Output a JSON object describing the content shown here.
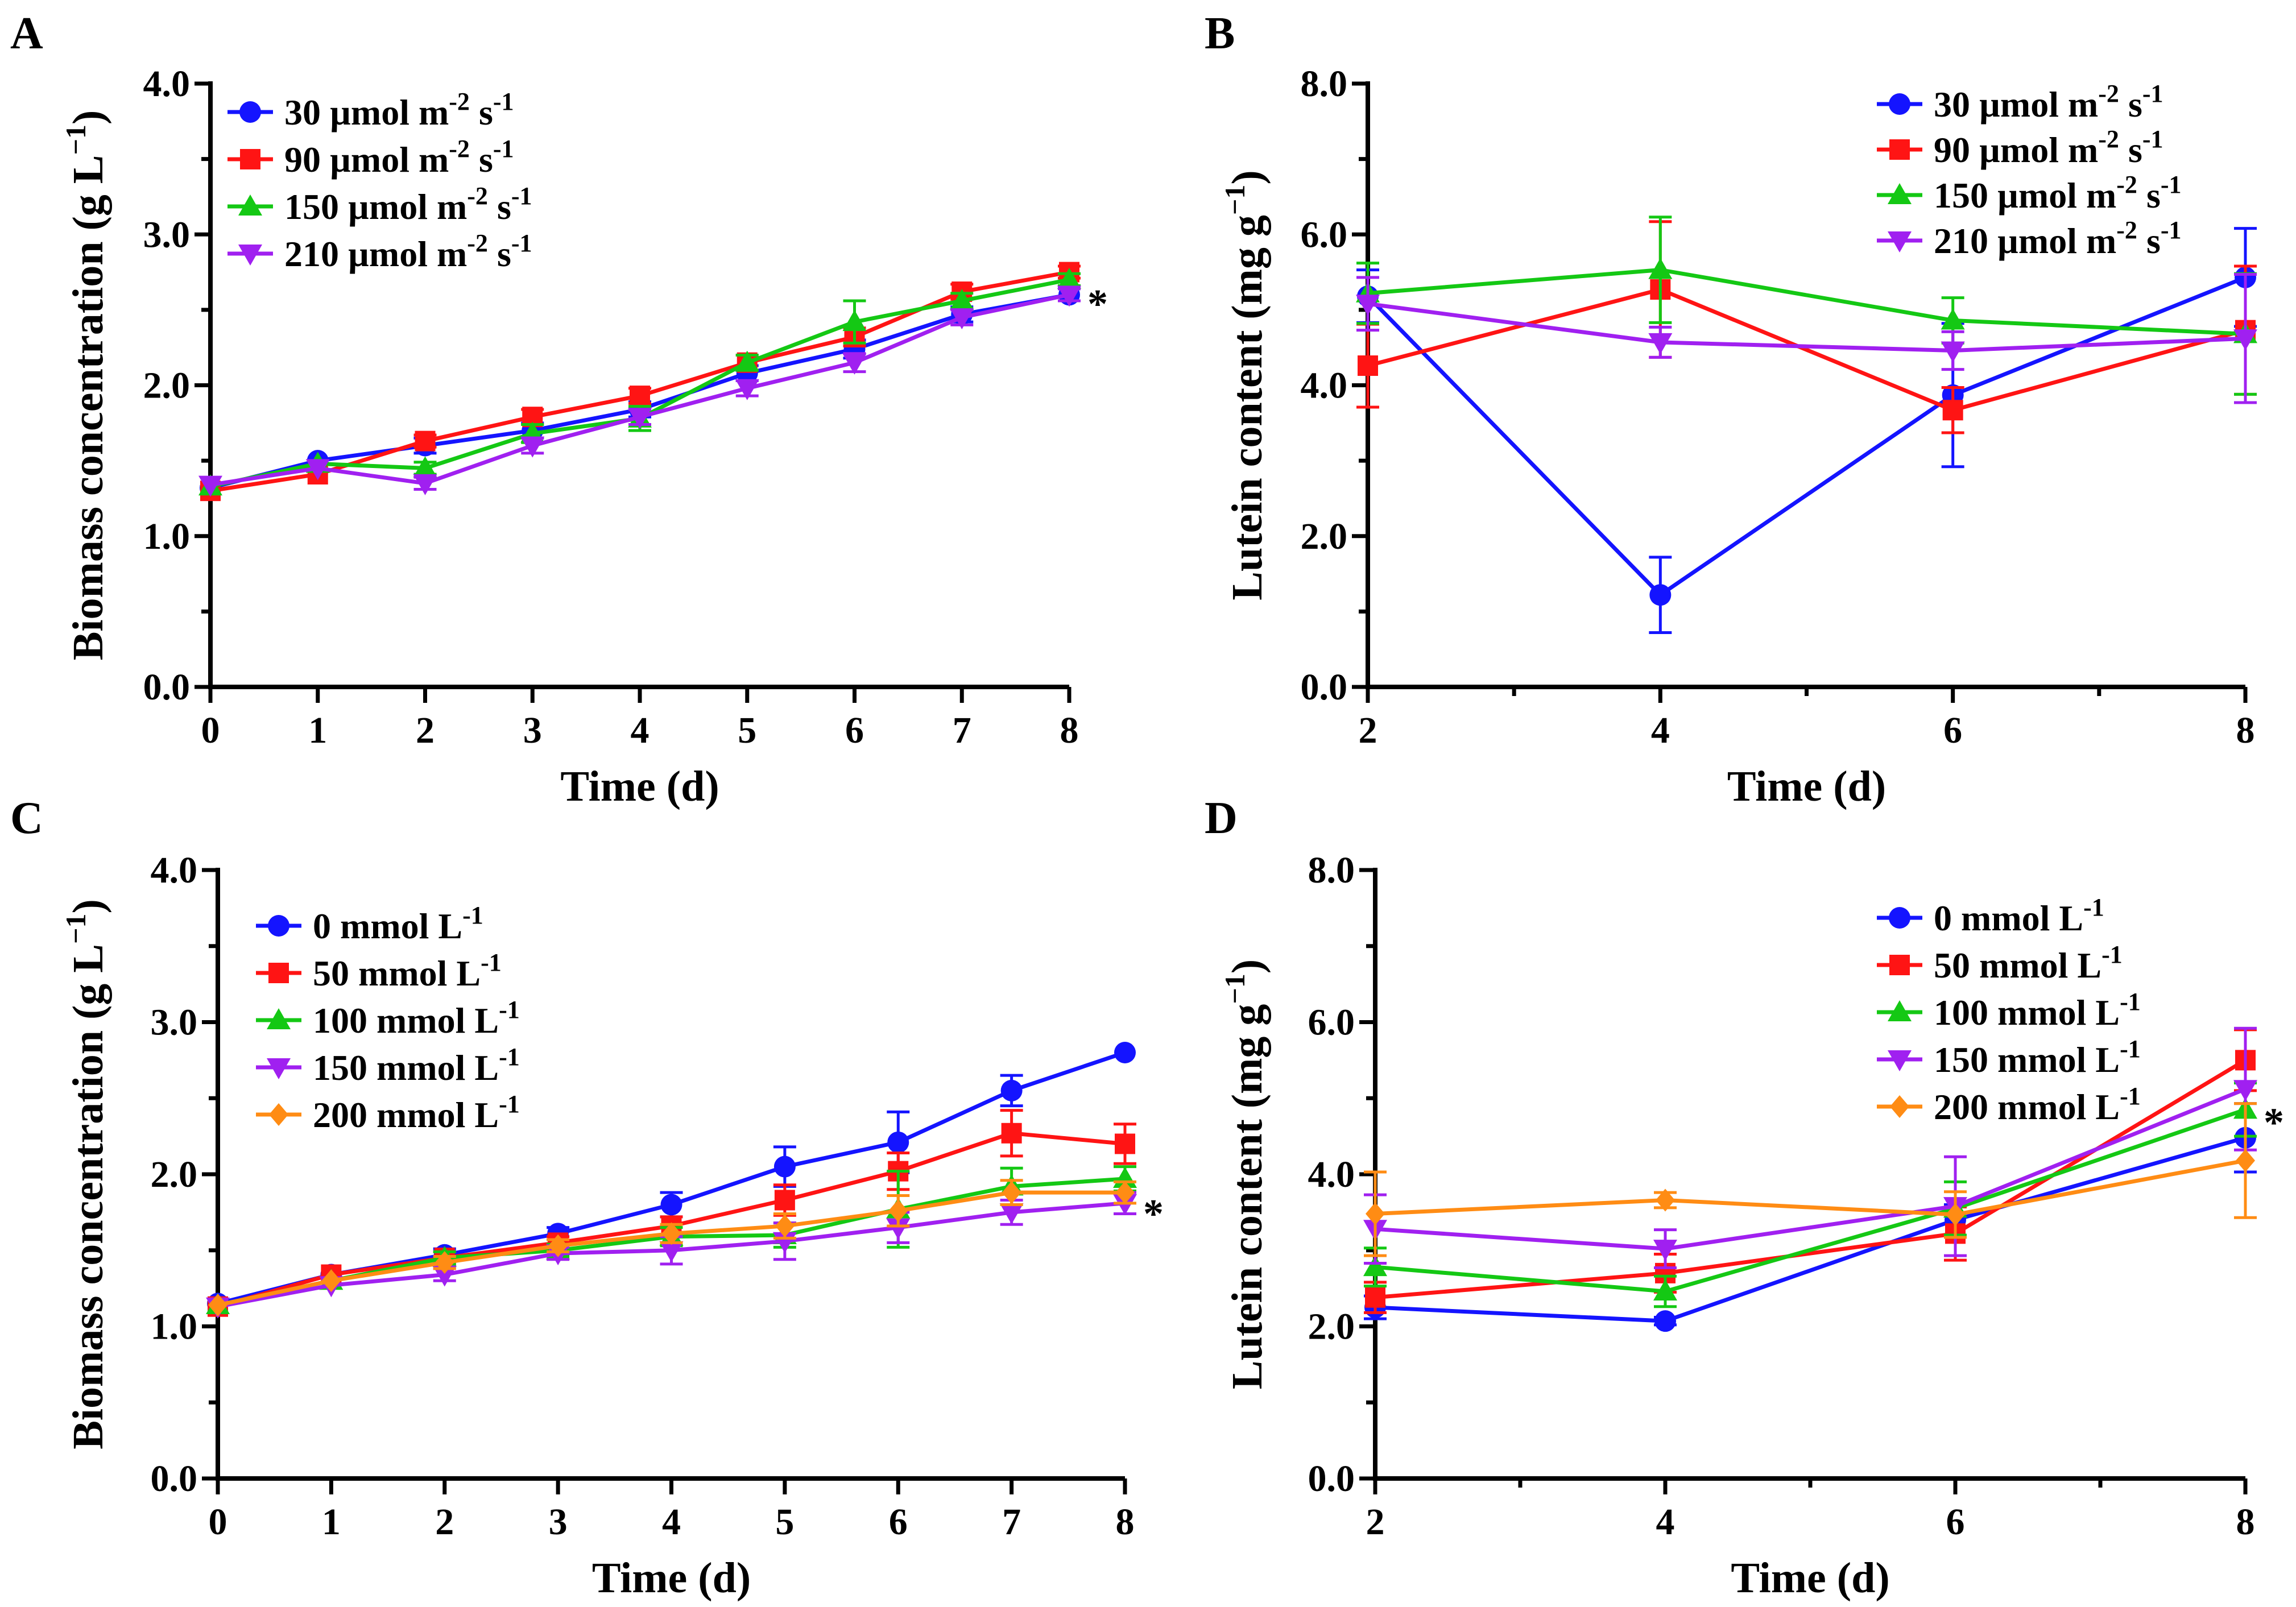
{
  "chart_data": [
    {
      "panel": "A",
      "type": "line",
      "title": "",
      "xlabel": "Time (d)",
      "ylabel": "Biomass concentration (g L",
      "ylabel_sup": "−1",
      "ylabel_close": ")",
      "xlim": [
        0,
        8
      ],
      "ylim": [
        0,
        4
      ],
      "xticks": [
        "0",
        "1",
        "2",
        "3",
        "4",
        "5",
        "6",
        "7",
        "8"
      ],
      "xtick_values": [
        0,
        1,
        2,
        3,
        4,
        5,
        6,
        7,
        8
      ],
      "yticks": [
        "0.0",
        "1.0",
        "2.0",
        "3.0",
        "4.0"
      ],
      "ytick_values": [
        0,
        1,
        2,
        3,
        4
      ],
      "legend_position": "top-left",
      "significance": "*",
      "significance_at": [
        8,
        2.6
      ],
      "x": [
        0,
        1,
        2,
        3,
        4,
        5,
        6,
        7,
        8
      ],
      "series": [
        {
          "name": "30 µmol m",
          "sup1": "-2",
          "mid": " s",
          "sup2": "-1",
          "color": "#1414FF",
          "marker": "circle",
          "values": [
            1.32,
            1.5,
            1.6,
            1.7,
            1.84,
            2.08,
            2.24,
            2.47,
            2.6
          ],
          "errors": [
            0.03,
            0.03,
            0.05,
            0.05,
            0.05,
            0.05,
            0.06,
            0.05,
            0.04
          ]
        },
        {
          "name": "90 µmol m",
          "sup1": "-2",
          "mid": " s",
          "sup2": "-1",
          "color": "#FF1414",
          "marker": "square",
          "values": [
            1.3,
            1.41,
            1.63,
            1.79,
            1.93,
            2.15,
            2.32,
            2.62,
            2.75
          ],
          "errors": [
            0.03,
            0.03,
            0.04,
            0.05,
            0.05,
            0.05,
            0.06,
            0.05,
            0.04
          ]
        },
        {
          "name": "150 µmol m",
          "sup1": "-2",
          "mid": " s",
          "sup2": "-1",
          "color": "#14C814",
          "marker": "triangle-up",
          "values": [
            1.33,
            1.48,
            1.45,
            1.68,
            1.78,
            2.15,
            2.42,
            2.56,
            2.7
          ],
          "errors": [
            0.03,
            0.03,
            0.04,
            0.06,
            0.08,
            0.05,
            0.14,
            0.05,
            0.04
          ]
        },
        {
          "name": "210 µmol m",
          "sup1": "-2",
          "mid": " s",
          "sup2": "-1",
          "color": "#A020F0",
          "marker": "triangle-down",
          "values": [
            1.34,
            1.45,
            1.35,
            1.6,
            1.79,
            1.98,
            2.15,
            2.45,
            2.6
          ],
          "errors": [
            0.03,
            0.03,
            0.04,
            0.05,
            0.05,
            0.05,
            0.06,
            0.05,
            0.04
          ]
        }
      ]
    },
    {
      "panel": "B",
      "type": "line",
      "title": "",
      "xlabel": "Time (d)",
      "ylabel": "Lutein content (mg g",
      "ylabel_sup": "−1",
      "ylabel_close": ")",
      "xlim": [
        2,
        8
      ],
      "ylim": [
        0,
        8
      ],
      "xticks": [
        "2",
        "4",
        "6",
        "8"
      ],
      "xtick_values": [
        2,
        4,
        6,
        8
      ],
      "yticks": [
        "0.0",
        "2.0",
        "4.0",
        "6.0",
        "8.0"
      ],
      "ytick_values": [
        0,
        2,
        4,
        6,
        8
      ],
      "legend_position": "top-right",
      "significance": "",
      "significance_at": null,
      "x": [
        2,
        4,
        6,
        8
      ],
      "series": [
        {
          "name": "30 µmol m",
          "sup1": "-2",
          "mid": " s",
          "sup2": "-1",
          "color": "#1414FF",
          "marker": "circle",
          "values": [
            5.18,
            1.22,
            3.87,
            5.43
          ],
          "errors": [
            0.35,
            0.5,
            0.95,
            0.65
          ]
        },
        {
          "name": "90 µmol m",
          "sup1": "-2",
          "mid": " s",
          "sup2": "-1",
          "color": "#FF1414",
          "marker": "square",
          "values": [
            4.26,
            5.27,
            3.67,
            4.73
          ],
          "errors": [
            0.55,
            0.9,
            0.3,
            0.85
          ]
        },
        {
          "name": "150 µmol m",
          "sup1": "-2",
          "mid": " s",
          "sup2": "-1",
          "color": "#14C814",
          "marker": "triangle-up",
          "values": [
            5.22,
            5.53,
            4.86,
            4.68
          ],
          "errors": [
            0.4,
            0.7,
            0.3,
            0.8
          ]
        },
        {
          "name": "210 µmol m",
          "sup1": "-2",
          "mid": " s",
          "sup2": "-1",
          "color": "#A020F0",
          "marker": "triangle-down",
          "values": [
            5.08,
            4.57,
            4.46,
            4.62
          ],
          "errors": [
            0.35,
            0.2,
            0.25,
            0.85
          ]
        }
      ]
    },
    {
      "panel": "C",
      "type": "line",
      "title": "",
      "xlabel": "Time (d)",
      "ylabel": "Biomass concentration (g L",
      "ylabel_sup": "−1",
      "ylabel_close": ")",
      "xlim": [
        0,
        8
      ],
      "ylim": [
        0,
        4
      ],
      "xticks": [
        "0",
        "1",
        "2",
        "3",
        "4",
        "5",
        "6",
        "7",
        "8"
      ],
      "xtick_values": [
        0,
        1,
        2,
        3,
        4,
        5,
        6,
        7,
        8
      ],
      "yticks": [
        "0.0",
        "1.0",
        "2.0",
        "3.0",
        "4.0"
      ],
      "ytick_values": [
        0,
        1,
        2,
        3,
        4
      ],
      "legend_position": "top-left",
      "significance": "*",
      "significance_at": [
        8,
        1.8
      ],
      "x": [
        0,
        1,
        2,
        3,
        4,
        5,
        6,
        7,
        8
      ],
      "series": [
        {
          "name": "0  mmol L",
          "sup1": "-1",
          "mid": "",
          "sup2": "",
          "color": "#1414FF",
          "marker": "circle",
          "values": [
            1.15,
            1.34,
            1.47,
            1.61,
            1.8,
            2.05,
            2.21,
            2.55,
            2.8
          ],
          "errors": [
            0.02,
            0.03,
            0.04,
            0.04,
            0.08,
            0.13,
            0.2,
            0.1,
            0.03
          ]
        },
        {
          "name": "50  mmol L",
          "sup1": "-1",
          "mid": "",
          "sup2": "",
          "color": "#FF1414",
          "marker": "square",
          "values": [
            1.13,
            1.34,
            1.45,
            1.55,
            1.66,
            1.83,
            2.02,
            2.27,
            2.2
          ],
          "errors": [
            0.02,
            0.03,
            0.04,
            0.04,
            0.06,
            0.1,
            0.12,
            0.15,
            0.13
          ]
        },
        {
          "name": "100 mmol L",
          "sup1": "-1",
          "mid": "",
          "sup2": "",
          "color": "#14C814",
          "marker": "triangle-up",
          "values": [
            1.14,
            1.3,
            1.45,
            1.5,
            1.59,
            1.6,
            1.77,
            1.92,
            1.97
          ],
          "errors": [
            0.02,
            0.03,
            0.04,
            0.04,
            0.06,
            0.08,
            0.25,
            0.12,
            0.08
          ]
        },
        {
          "name": "150 mmol L",
          "sup1": "-1",
          "mid": "",
          "sup2": "",
          "color": "#A020F0",
          "marker": "triangle-down",
          "values": [
            1.13,
            1.27,
            1.34,
            1.48,
            1.5,
            1.56,
            1.65,
            1.75,
            1.81
          ],
          "errors": [
            0.02,
            0.03,
            0.04,
            0.04,
            0.09,
            0.12,
            0.1,
            0.08,
            0.07
          ]
        },
        {
          "name": "200 mmol L",
          "sup1": "-1",
          "mid": "",
          "sup2": "",
          "color": "#FF8C14",
          "marker": "diamond",
          "values": [
            1.14,
            1.3,
            1.42,
            1.53,
            1.61,
            1.66,
            1.76,
            1.88,
            1.88
          ],
          "errors": [
            0.02,
            0.03,
            0.04,
            0.04,
            0.06,
            0.08,
            0.1,
            0.08,
            0.07
          ]
        }
      ]
    },
    {
      "panel": "D",
      "type": "line",
      "title": "",
      "xlabel": "Time (d)",
      "ylabel": "Lutein content (mg g",
      "ylabel_sup": "−1",
      "ylabel_close": ")",
      "xlim": [
        2,
        8
      ],
      "ylim": [
        0,
        8
      ],
      "xticks": [
        "2",
        "4",
        "6",
        "8"
      ],
      "xtick_values": [
        2,
        4,
        6,
        8
      ],
      "yticks": [
        "0.0",
        "2.0",
        "4.0",
        "6.0",
        "8.0"
      ],
      "ytick_values": [
        0,
        2,
        4,
        6,
        8
      ],
      "legend_position": "top-right",
      "significance": "*",
      "significance_at": [
        8,
        4.8
      ],
      "x": [
        2,
        4,
        6,
        8
      ],
      "series": [
        {
          "name": "0 mmol L",
          "sup1": "-1",
          "mid": "",
          "sup2": "",
          "color": "#1414FF",
          "marker": "circle",
          "values": [
            2.25,
            2.07,
            3.4,
            4.48
          ],
          "errors": [
            0.15,
            0.05,
            0.2,
            0.45
          ]
        },
        {
          "name": "50 mmol L",
          "sup1": "-1",
          "mid": "",
          "sup2": "",
          "color": "#FF1414",
          "marker": "square",
          "values": [
            2.38,
            2.7,
            3.22,
            5.5
          ],
          "errors": [
            0.2,
            0.25,
            0.35,
            0.4
          ]
        },
        {
          "name": "100 mmol L",
          "sup1": "-1",
          "mid": "",
          "sup2": "",
          "color": "#14C814",
          "marker": "triangle-up",
          "values": [
            2.78,
            2.46,
            3.55,
            4.85
          ],
          "errors": [
            0.25,
            0.2,
            0.35,
            0.35
          ]
        },
        {
          "name": "150 mmol L",
          "sup1": "-1",
          "mid": "",
          "sup2": "",
          "color": "#A020F0",
          "marker": "triangle-down",
          "values": [
            3.28,
            3.02,
            3.58,
            5.12
          ],
          "errors": [
            0.45,
            0.25,
            0.65,
            0.8
          ]
        },
        {
          "name": "200 mmol L",
          "sup1": "-1",
          "mid": "",
          "sup2": "",
          "color": "#FF8C14",
          "marker": "diamond",
          "values": [
            3.48,
            3.66,
            3.47,
            4.18
          ],
          "errors": [
            0.55,
            0.1,
            0.3,
            0.75
          ]
        }
      ]
    }
  ]
}
